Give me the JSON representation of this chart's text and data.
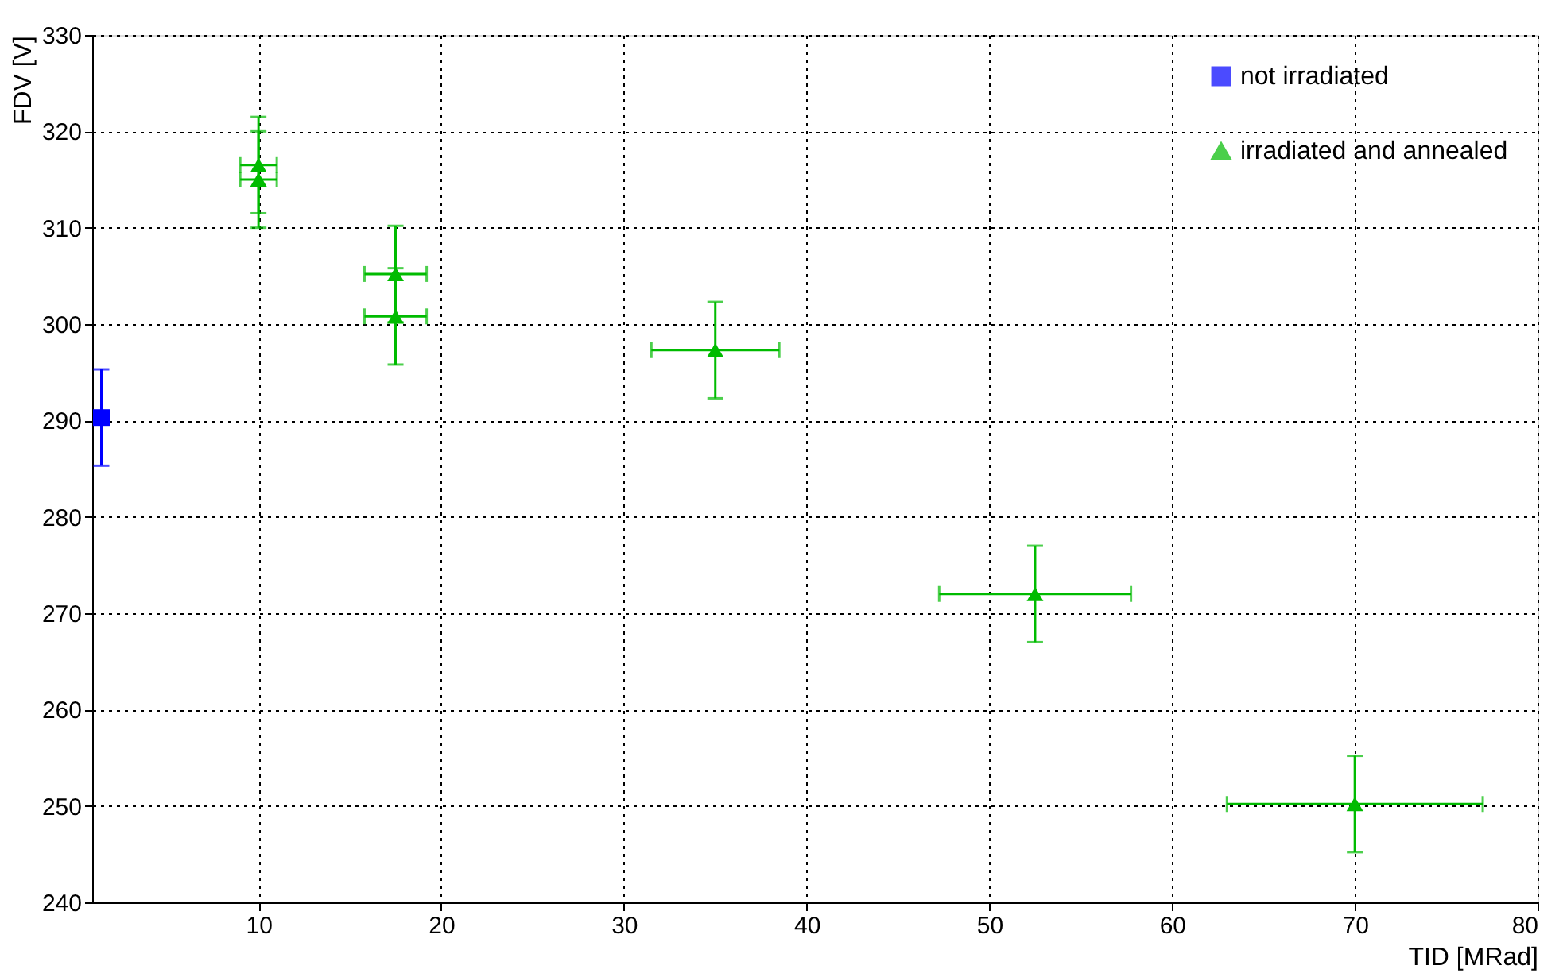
{
  "chart_data": {
    "type": "scatter",
    "xlabel": "TID [MRad]",
    "ylabel": "FDV [V]",
    "xlim": [
      0.9,
      80
    ],
    "ylim": [
      240,
      330
    ],
    "xticks": [
      10,
      20,
      30,
      40,
      50,
      60,
      70,
      80
    ],
    "yticks": [
      240,
      250,
      260,
      270,
      280,
      290,
      300,
      310,
      320,
      330
    ],
    "grid": true,
    "legend": "top right",
    "series": [
      {
        "name": "not irradiated",
        "color": "#0000ff",
        "marker": "square",
        "x": [
          1.4
        ],
        "values": [
          290.3
        ],
        "errors": [
          5
        ],
        "xerrors": [
          null
        ]
      },
      {
        "name": "irradiated and annealed",
        "color": "#00bb00",
        "marker": "triangle",
        "x": [
          10,
          10,
          17.5,
          17.5,
          35,
          52.5,
          70
        ],
        "values": [
          316.5,
          315,
          305.2,
          300.8,
          297.3,
          272,
          250.2
        ],
        "errors": [
          5,
          5,
          5,
          5,
          5,
          5,
          5
        ],
        "xerrors": [
          1,
          1,
          1.7,
          1.7,
          3.5,
          5.25,
          7
        ]
      }
    ]
  }
}
